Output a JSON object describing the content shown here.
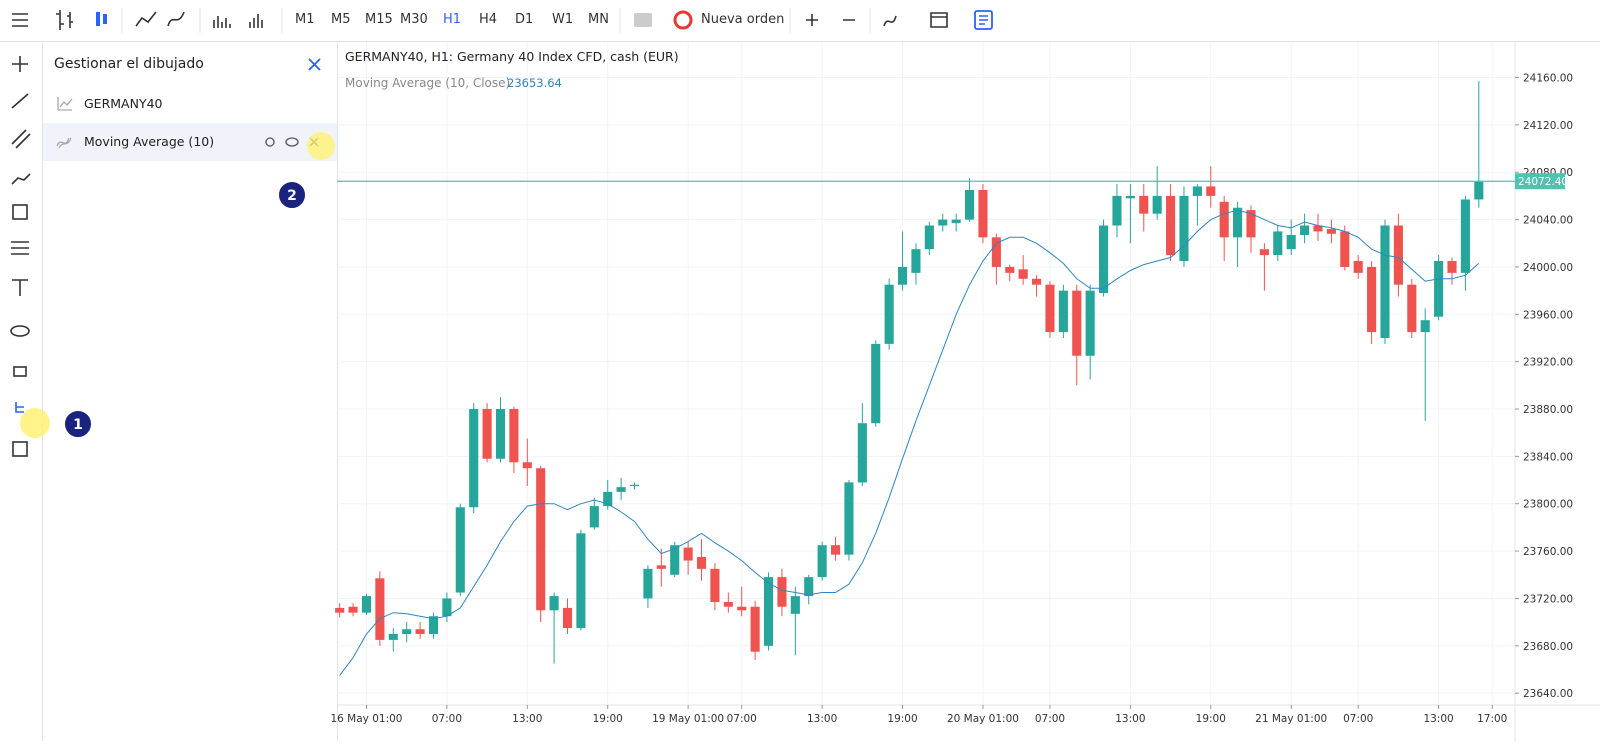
{
  "toolbar": {
    "timeframes": [
      "M1",
      "M5",
      "M15",
      "M30",
      "H1",
      "H4",
      "D1",
      "W1",
      "MN"
    ],
    "new_order": "Nueva orden"
  },
  "panel": {
    "title": "Gestionar el dibujado",
    "items": [
      "GERMANY40",
      "Moving Average (10)"
    ]
  },
  "badges": [
    "1",
    "2"
  ],
  "chart_data": {
    "type": "candlestick",
    "title": "GERMANY40, H1: Germany 40 Index CFD, cash (EUR)",
    "indicator_label": "Moving Average (10, Close)",
    "indicator_value": "23653.64",
    "up_color": "#26a69a",
    "down_color": "#ef5350",
    "xlim": [
      -0.2,
      87.7
    ],
    "xticks": [
      {
        "value": 2,
        "label": "16 May 01:00"
      },
      {
        "value": 8,
        "label": "07:00"
      },
      {
        "value": 14,
        "label": "13:00"
      },
      {
        "value": 20,
        "label": "19:00"
      },
      {
        "value": 26,
        "label": "19 May 01:00"
      },
      {
        "value": 30,
        "label": "07:00"
      },
      {
        "value": 36,
        "label": "13:00"
      },
      {
        "value": 42,
        "label": "19:00"
      },
      {
        "value": 48,
        "label": "20 May 01:00"
      },
      {
        "value": 53,
        "label": "07:00"
      },
      {
        "value": 59,
        "label": "13:00"
      },
      {
        "value": 65,
        "label": "19:00"
      },
      {
        "value": 71,
        "label": "21 May 01:00"
      },
      {
        "value": 76,
        "label": "07:00"
      },
      {
        "value": 82,
        "label": "13:00"
      },
      {
        "value": 86,
        "label": "17:00"
      }
    ],
    "ylim": [
      23630,
      24190
    ],
    "yticks": [
      {
        "value": 24160,
        "label": "24160.00"
      },
      {
        "value": 24120,
        "label": "24120.00"
      },
      {
        "value": 24080,
        "label": "24080.00"
      },
      {
        "value": 24040,
        "label": "24040.00"
      },
      {
        "value": 24000,
        "label": "24000.00"
      },
      {
        "value": 23960,
        "label": "23960.00"
      },
      {
        "value": 23920,
        "label": "23920.00"
      },
      {
        "value": 23880,
        "label": "23880.00"
      },
      {
        "value": 23840,
        "label": "23840.00"
      },
      {
        "value": 23800,
        "label": "23800.00"
      },
      {
        "value": 23760,
        "label": "23760.00"
      },
      {
        "value": 23720,
        "label": "23720.00"
      },
      {
        "value": 23680,
        "label": "23680.00"
      },
      {
        "value": 23640,
        "label": "23640.00"
      }
    ],
    "grid": true,
    "price_line": {
      "value": 24072.4,
      "label": "24072.40",
      "color": "#4fc3b0"
    },
    "open": [
      23712,
      23713,
      23708,
      23737,
      23685,
      23690,
      23694,
      23690,
      23705,
      23725,
      23797,
      23880,
      23838,
      23880,
      23835,
      23830,
      23710,
      23712,
      23695,
      23780,
      23798,
      23810,
      23815,
      23720,
      23748,
      23740,
      23763,
      23755,
      23745,
      23717,
      23713,
      23713,
      23680,
      23738,
      23707,
      23722,
      23738,
      23765,
      23757,
      23818,
      23868,
      23935,
      23985,
      23995,
      24015,
      24035,
      24037,
      24040,
      24065,
      24025,
      24000,
      23998,
      23990,
      23985,
      23945,
      23980,
      23925,
      23978,
      24035,
      24058,
      24060,
      24045,
      24060,
      24005,
      24060,
      24068,
      24055,
      24025,
      24048,
      24015,
      24010,
      24015,
      24027,
      24035,
      24032,
      24030,
      24005,
      24000,
      23940,
      24035,
      23985,
      23945,
      23958,
      24005,
      23995,
      24057
    ],
    "high": [
      23716,
      23716,
      23724,
      23743,
      23695,
      23700,
      23700,
      23708,
      23725,
      23800,
      23885,
      23885,
      23890,
      23882,
      23855,
      23832,
      23725,
      23720,
      23778,
      23805,
      23820,
      23822,
      23818,
      23748,
      23762,
      23768,
      23768,
      23770,
      23750,
      23725,
      23730,
      23718,
      23742,
      23745,
      23730,
      23740,
      23768,
      23772,
      23820,
      23885,
      23938,
      23990,
      24030,
      24020,
      24038,
      24045,
      24045,
      24075,
      24070,
      24028,
      24002,
      24010,
      23993,
      23988,
      23985,
      23985,
      23985,
      24040,
      24070,
      24070,
      24070,
      24085,
      24070,
      24068,
      24070,
      24085,
      24060,
      24055,
      24052,
      24020,
      24035,
      24040,
      24045,
      24045,
      24040,
      24035,
      24010,
      24005,
      24040,
      24045,
      23990,
      23965,
      24010,
      24008,
      24060,
      24157
    ],
    "low": [
      23704,
      23705,
      23706,
      23680,
      23675,
      23683,
      23686,
      23686,
      23700,
      23722,
      23792,
      23835,
      23835,
      23826,
      23815,
      23700,
      23665,
      23690,
      23693,
      23778,
      23795,
      23803,
      23812,
      23712,
      23730,
      23738,
      23740,
      23735,
      23710,
      23708,
      23705,
      23668,
      23676,
      23705,
      23672,
      23715,
      23735,
      23752,
      23752,
      23815,
      23865,
      23930,
      23980,
      23985,
      24010,
      24030,
      24030,
      24038,
      24020,
      23985,
      23988,
      23985,
      23975,
      23940,
      23940,
      23900,
      23905,
      23975,
      24025,
      24020,
      24030,
      24040,
      24005,
      24000,
      24035,
      24050,
      24005,
      24000,
      24012,
      23980,
      24005,
      24010,
      24020,
      24022,
      24020,
      23997,
      23990,
      23935,
      23935,
      23975,
      23940,
      23870,
      23955,
      23985,
      23980,
      24050
    ],
    "close": [
      23708,
      23708,
      23722,
      23685,
      23690,
      23694,
      23690,
      23705,
      23720,
      23797,
      23880,
      23838,
      23880,
      23835,
      23830,
      23710,
      23722,
      23695,
      23775,
      23798,
      23810,
      23814,
      23816,
      23745,
      23745,
      23765,
      23752,
      23745,
      23717,
      23713,
      23710,
      23675,
      23738,
      23713,
      23722,
      23738,
      23765,
      23757,
      23818,
      23868,
      23935,
      23985,
      24000,
      24015,
      24035,
      24040,
      24040,
      24065,
      24025,
      24000,
      23995,
      23990,
      23985,
      23945,
      23980,
      23925,
      23980,
      24035,
      24060,
      24060,
      24045,
      24060,
      24010,
      24060,
      24068,
      24060,
      24025,
      24050,
      24025,
      24010,
      24030,
      24027,
      24035,
      24030,
      24028,
      24000,
      23995,
      23945,
      24035,
      23985,
      23945,
      23955,
      24005,
      23995,
      24057,
      24072
    ],
    "ma": {
      "color": "#2e86c1",
      "values": [
        23655,
        23670,
        23690,
        23703,
        23708,
        23707,
        23705,
        23703,
        23705,
        23712,
        23730,
        23748,
        23768,
        23785,
        23798,
        23800,
        23800,
        23795,
        23800,
        23803,
        23800,
        23793,
        23785,
        23770,
        23758,
        23762,
        23768,
        23775,
        23767,
        23760,
        23752,
        23742,
        23733,
        23727,
        23725,
        23723,
        23725,
        23725,
        23732,
        23750,
        23775,
        23805,
        23838,
        23870,
        23900,
        23930,
        23960,
        23985,
        24005,
        24020,
        24025,
        24025,
        24020,
        24012,
        24003,
        23990,
        23982,
        23982,
        23990,
        23997,
        24002,
        24005,
        24008,
        24018,
        24030,
        24040,
        24045,
        24048,
        24045,
        24040,
        24035,
        24033,
        24038,
        24035,
        24033,
        24030,
        24025,
        24015,
        24010,
        24008,
        23998,
        23988,
        23990,
        23990,
        23993,
        24003
      ]
    }
  }
}
